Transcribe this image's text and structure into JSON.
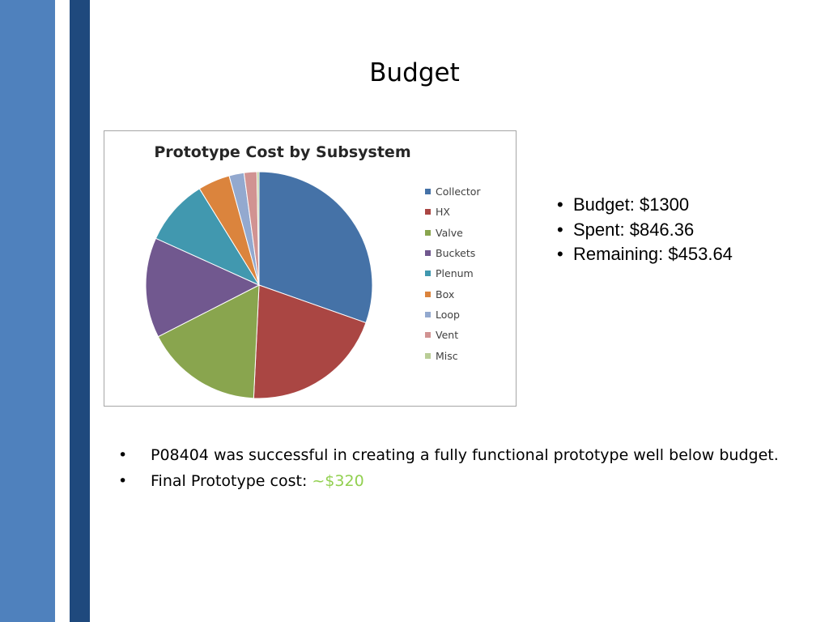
{
  "slide": {
    "title": "Budget",
    "bullet_char": "•"
  },
  "stats": [
    {
      "text": "Budget: $1300"
    },
    {
      "text": "Spent: $846.36"
    },
    {
      "text": "Remaining: $453.64"
    }
  ],
  "notes": [
    {
      "text": "P08404 was successful in creating a fully functional prototype well below budget.",
      "accent": ""
    },
    {
      "text": "Final Prototype cost: ",
      "accent": "~$320"
    }
  ],
  "colors": {
    "band_light": "#4f81bd",
    "band_dark": "#1f497d",
    "accent_green": "#92d050"
  },
  "chart_data": {
    "type": "pie",
    "title": "Prototype Cost by Subsystem",
    "legend_position": "right",
    "categories": [
      "Collector",
      "HX",
      "Valve",
      "Buckets",
      "Plenum",
      "Box",
      "Loop",
      "Vent",
      "Misc"
    ],
    "values": [
      100,
      67,
      55,
      47,
      31,
      15,
      7,
      6,
      1
    ],
    "colors": [
      "#4572a7",
      "#aa4643",
      "#89a54e",
      "#71588f",
      "#4198af",
      "#db843d",
      "#93a9cf",
      "#d19392",
      "#b9cd96"
    ]
  }
}
